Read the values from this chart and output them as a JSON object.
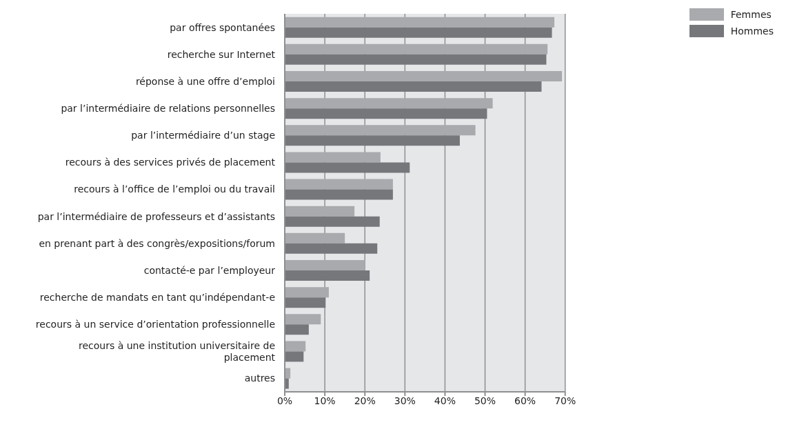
{
  "chart_data": {
    "type": "bar",
    "orientation": "horizontal",
    "categories": [
      "par offres spontanées",
      "recherche sur Internet",
      "réponse à une offre d’emploi",
      "par l’intermédiaire de relations personnelles",
      "par l’intermédiaire d’un stage",
      "recours à des services privés de placement",
      "recours à l’office de l’emploi ou du travail",
      "par l’intermédiaire de professeurs et d’assistants",
      "en prenant part à des congrès/expositions/forum",
      "contacté-e par l’employeur",
      "recherche de mandats en tant qu’indépendant-e",
      "recours à un service d’orientation professionnelle",
      "recours à une institution universitaire de placement",
      "autres"
    ],
    "series": [
      {
        "name": "Femmes",
        "color": "#a9aaad",
        "values": [
          67.3,
          65.6,
          69.2,
          51.9,
          47.6,
          23.9,
          27.0,
          17.4,
          15.0,
          20.1,
          11.0,
          9.0,
          5.2,
          1.4
        ]
      },
      {
        "name": "Hommes",
        "color": "#76777b",
        "values": [
          66.7,
          65.3,
          64.1,
          50.5,
          43.7,
          31.2,
          27.0,
          23.7,
          23.1,
          21.2,
          10.2,
          6.0,
          4.7,
          1.0
        ]
      }
    ],
    "xlim": [
      0,
      70
    ],
    "xticks": [
      {
        "value": 0,
        "label": "0%"
      },
      {
        "value": 10,
        "label": "10%"
      },
      {
        "value": 20,
        "label": "20%"
      },
      {
        "value": 30,
        "label": "30%"
      },
      {
        "value": 40,
        "label": "40%"
      },
      {
        "value": 50,
        "label": "50%"
      },
      {
        "value": 60,
        "label": "60%"
      },
      {
        "value": 70,
        "label": "70%"
      }
    ],
    "grid": "x",
    "legend": "top right"
  }
}
